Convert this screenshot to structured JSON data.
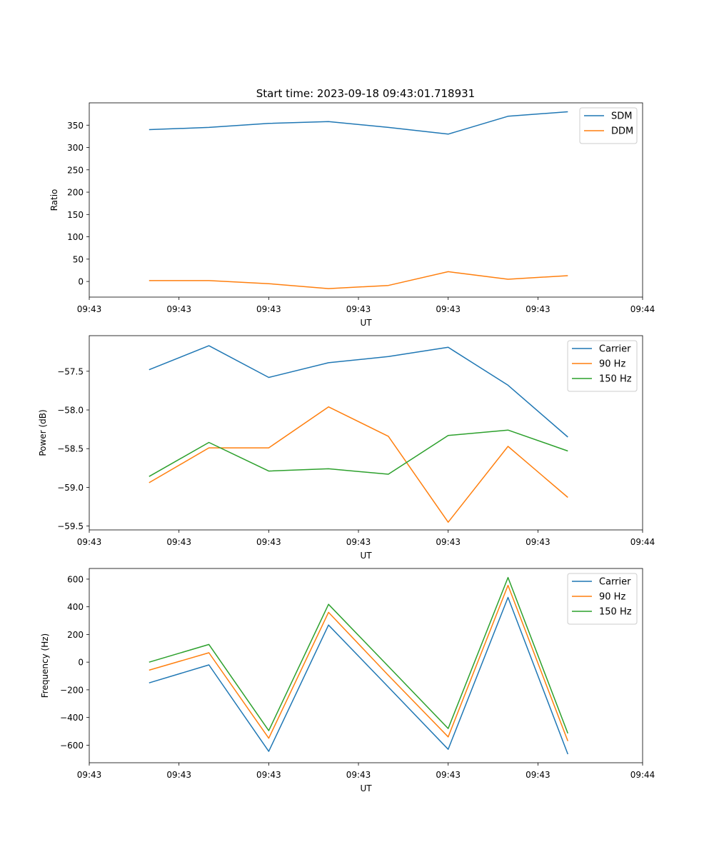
{
  "figure": {
    "title": "Start time: 2023-09-18 09:43:01.718931"
  },
  "chart_data": [
    {
      "type": "line",
      "xlabel": "UT",
      "ylabel": "Ratio",
      "x": [
        1,
        2,
        3,
        4,
        5,
        6,
        7,
        8
      ],
      "xlim": [
        0,
        9.25
      ],
      "xticks": [
        0,
        1.5,
        3,
        4.5,
        6,
        7.5,
        9.25
      ],
      "xtick_labels": [
        "09:43",
        "09:43",
        "09:43",
        "09:43",
        "09:43",
        "09:43",
        "09:44"
      ],
      "ylim": [
        -35,
        400
      ],
      "yticks": [
        0,
        50,
        100,
        150,
        200,
        250,
        300,
        350
      ],
      "ytick_labels": [
        "0",
        "50",
        "100",
        "150",
        "200",
        "250",
        "300",
        "350"
      ],
      "legend": "top-right",
      "series": [
        {
          "name": "SDM",
          "color": "#1f77b4",
          "values": [
            340,
            345,
            354,
            358,
            345,
            330,
            370,
            380
          ]
        },
        {
          "name": "DDM",
          "color": "#ff7f0e",
          "values": [
            2,
            2,
            -5,
            -16,
            -9,
            22,
            5,
            13
          ]
        }
      ]
    },
    {
      "type": "line",
      "xlabel": "UT",
      "ylabel": "Power (dB)",
      "x": [
        1,
        2,
        3,
        4,
        5,
        6,
        7,
        8
      ],
      "xlim": [
        0,
        9.25
      ],
      "xticks": [
        0,
        1.5,
        3,
        4.5,
        6,
        7.5,
        9.25
      ],
      "xtick_labels": [
        "09:43",
        "09:43",
        "09:43",
        "09:43",
        "09:43",
        "09:43",
        "09:44"
      ],
      "ylim": [
        -59.55,
        -57.04
      ],
      "yticks": [
        -59.5,
        -59.0,
        -58.5,
        -58.0,
        -57.5
      ],
      "ytick_labels": [
        "−59.5",
        "−59.0",
        "−58.5",
        "−58.0",
        "−57.5"
      ],
      "legend": "top-right",
      "series": [
        {
          "name": "Carrier",
          "color": "#1f77b4",
          "values": [
            -57.48,
            -57.17,
            -57.58,
            -57.39,
            -57.31,
            -57.19,
            -57.68,
            -58.35
          ]
        },
        {
          "name": "90 Hz",
          "color": "#ff7f0e",
          "values": [
            -58.94,
            -58.49,
            -58.49,
            -57.96,
            -58.34,
            -59.45,
            -58.47,
            -59.13
          ]
        },
        {
          "name": "150 Hz",
          "color": "#2ca02c",
          "values": [
            -58.86,
            -58.42,
            -58.79,
            -58.76,
            -58.83,
            -58.33,
            -58.26,
            -58.53
          ]
        }
      ]
    },
    {
      "type": "line",
      "xlabel": "UT",
      "ylabel": "Frequency (Hz)",
      "x": [
        1,
        2,
        3,
        4,
        5,
        6,
        7,
        8
      ],
      "xlim": [
        0,
        9.25
      ],
      "xticks": [
        0,
        1.5,
        3,
        4.5,
        6,
        7.5,
        9.25
      ],
      "xtick_labels": [
        "09:43",
        "09:43",
        "09:43",
        "09:43",
        "09:43",
        "09:43",
        "09:44"
      ],
      "ylim": [
        -727,
        677
      ],
      "yticks": [
        -600,
        -400,
        -200,
        0,
        200,
        400,
        600
      ],
      "ytick_labels": [
        "−600",
        "−400",
        "−200",
        "0",
        "200",
        "400",
        "600"
      ],
      "legend": "top-right",
      "series": [
        {
          "name": "Carrier",
          "color": "#1f77b4",
          "values": [
            -150,
            -20,
            -645,
            268,
            -180,
            -630,
            468,
            -665
          ]
        },
        {
          "name": "90 Hz",
          "color": "#ff7f0e",
          "values": [
            -58,
            68,
            -550,
            360,
            -95,
            -540,
            555,
            -570
          ]
        },
        {
          "name": "150 Hz",
          "color": "#2ca02c",
          "values": [
            0,
            128,
            -495,
            418,
            -30,
            -480,
            612,
            -515
          ]
        }
      ]
    }
  ]
}
